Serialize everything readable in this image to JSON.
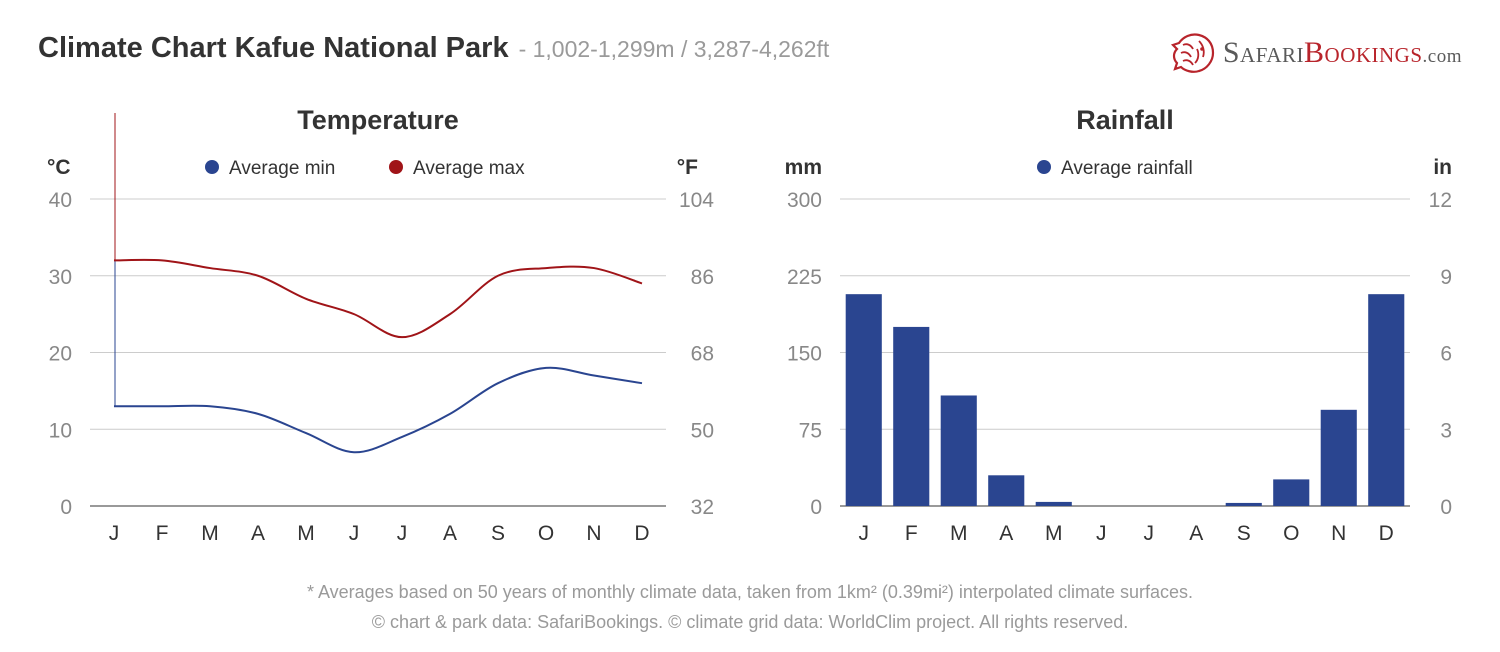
{
  "header": {
    "title": "Climate Chart Kafue National Park",
    "subtitle": "- 1,002-1,299m / 3,287-4,262ft"
  },
  "logo": {
    "part1": "Safari",
    "part2": "Bookings",
    "part3": ".com",
    "icon": "lion-head-icon"
  },
  "footer": {
    "note": "* Averages based on 50 years of monthly climate data, taken from 1km² (0.39mi²) interpolated climate surfaces.",
    "credits": "© chart & park data: SafariBookings. © climate grid data: WorldClim project. All rights reserved."
  },
  "chart_data": [
    {
      "type": "line",
      "title": "Temperature",
      "categories": [
        "J",
        "F",
        "M",
        "A",
        "M",
        "J",
        "J",
        "A",
        "S",
        "O",
        "N",
        "D"
      ],
      "y_left_unit": "°C",
      "y_right_unit": "°F",
      "y_left_ticks": [
        "0",
        "10",
        "20",
        "30",
        "40"
      ],
      "y_right_ticks": [
        "32",
        "50",
        "68",
        "86",
        "104"
      ],
      "ylim": [
        0,
        40
      ],
      "grid": true,
      "legend_position": "top",
      "series": [
        {
          "name": "Average min",
          "color": "#2a4590",
          "values": [
            13,
            13,
            13,
            12,
            9.5,
            7,
            9,
            12,
            16,
            18,
            17,
            16
          ]
        },
        {
          "name": "Average max",
          "color": "#a01418",
          "values": [
            32,
            32,
            31,
            30,
            27,
            25,
            22,
            25,
            30,
            31,
            31,
            29
          ]
        }
      ]
    },
    {
      "type": "bar",
      "title": "Rainfall",
      "categories": [
        "J",
        "F",
        "M",
        "A",
        "M",
        "J",
        "J",
        "A",
        "S",
        "O",
        "N",
        "D"
      ],
      "y_left_unit": "mm",
      "y_right_unit": "in",
      "y_left_ticks": [
        "0",
        "75",
        "150",
        "225",
        "300"
      ],
      "y_right_ticks": [
        "0",
        "3",
        "6",
        "9",
        "12"
      ],
      "ylim": [
        0,
        300
      ],
      "grid": true,
      "legend_position": "top",
      "series": [
        {
          "name": "Average rainfall",
          "color": "#2a4590",
          "values": [
            207,
            175,
            108,
            30,
            4,
            0,
            0,
            0,
            3,
            26,
            94,
            207
          ]
        }
      ]
    }
  ]
}
